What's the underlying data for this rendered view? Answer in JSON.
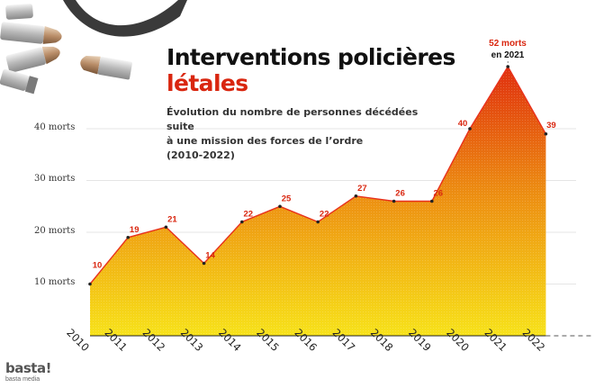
{
  "title_line1": "Interventions policières",
  "title_line2": "létales",
  "subtitle_lines": [
    "Évolution du nombre de personnes décédées suite",
    "à une mission des forces de l’ordre",
    "(2010-2022)"
  ],
  "callout": {
    "line1": "52 morts",
    "line2": "en 2021"
  },
  "logo": {
    "main": "basta!",
    "sub": "basta media"
  },
  "colors": {
    "title_accent": "#d9260f",
    "line": "#e8311c",
    "fill_top": "#e0300f",
    "fill_bottom": "#f7e21a"
  },
  "chart_data": {
    "type": "area",
    "x": [
      "2010",
      "2011",
      "2012",
      "2013",
      "2014",
      "2015",
      "2016",
      "2017",
      "2018",
      "2019",
      "2020",
      "2021",
      "2022"
    ],
    "values": [
      10,
      19,
      21,
      14,
      22,
      25,
      22,
      27,
      26,
      26,
      40,
      52,
      39
    ],
    "data_labels": [
      "10",
      "19",
      "21",
      "14",
      "22",
      "25",
      "22",
      "27",
      "26",
      "26",
      "40",
      "",
      "39"
    ],
    "y_ticks": [
      {
        "value": 10,
        "label": "10 morts"
      },
      {
        "value": 20,
        "label": "20 morts"
      },
      {
        "value": 30,
        "label": "30 morts"
      },
      {
        "value": 40,
        "label": "40 morts"
      }
    ],
    "ylim": [
      0,
      52
    ],
    "grid": true
  }
}
